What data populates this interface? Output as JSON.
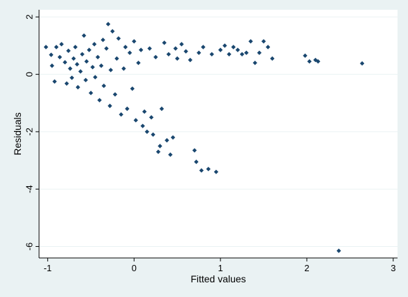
{
  "chart_data": {
    "type": "scatter",
    "title": "",
    "xlabel": "Fitted values",
    "ylabel": "Residuals",
    "xlim": [
      -1.1,
      3.05
    ],
    "ylim": [
      -6.4,
      2.25
    ],
    "x_ticks": [
      -1,
      0,
      1,
      2,
      3
    ],
    "y_ticks": [
      2,
      0,
      -2,
      -4,
      -6
    ],
    "x_tick_labels": [
      "-1",
      "0",
      "1",
      "2",
      "3"
    ],
    "y_tick_labels": [
      "2",
      "0",
      "-2",
      "-4",
      "-6"
    ],
    "grid": true,
    "legend": "none",
    "colors": {
      "outer_background": "#eaf2f3",
      "plot_background": "#ffffff",
      "marker": "#1a476f",
      "gridline": "#eaf2f3",
      "axis": "#000000"
    },
    "marker_shape": "diamond",
    "points": [
      [
        -1.02,
        0.95
      ],
      [
        -0.96,
        0.68
      ],
      [
        -0.95,
        0.3
      ],
      [
        -0.92,
        -0.25
      ],
      [
        -0.9,
        0.95
      ],
      [
        -0.86,
        0.6
      ],
      [
        -0.84,
        1.05
      ],
      [
        -0.8,
        0.42
      ],
      [
        -0.78,
        -0.32
      ],
      [
        -0.76,
        0.82
      ],
      [
        -0.74,
        0.2
      ],
      [
        -0.72,
        -0.12
      ],
      [
        -0.7,
        0.55
      ],
      [
        -0.68,
        0.95
      ],
      [
        -0.66,
        0.35
      ],
      [
        -0.65,
        -0.45
      ],
      [
        -0.62,
        0.1
      ],
      [
        -0.6,
        0.7
      ],
      [
        -0.58,
        1.35
      ],
      [
        -0.56,
        -0.2
      ],
      [
        -0.55,
        0.45
      ],
      [
        -0.52,
        0.85
      ],
      [
        -0.5,
        -0.65
      ],
      [
        -0.48,
        0.25
      ],
      [
        -0.46,
        1.05
      ],
      [
        -0.45,
        -0.1
      ],
      [
        -0.42,
        0.6
      ],
      [
        -0.4,
        -0.9
      ],
      [
        -0.38,
        0.3
      ],
      [
        -0.36,
        1.2
      ],
      [
        -0.35,
        -0.4
      ],
      [
        -0.32,
        0.9
      ],
      [
        -0.3,
        1.75
      ],
      [
        -0.28,
        -1.1
      ],
      [
        -0.27,
        0.15
      ],
      [
        -0.25,
        1.5
      ],
      [
        -0.22,
        -0.7
      ],
      [
        -0.2,
        0.55
      ],
      [
        -0.18,
        1.25
      ],
      [
        -0.15,
        -1.4
      ],
      [
        -0.12,
        0.2
      ],
      [
        -0.1,
        0.95
      ],
      [
        -0.08,
        -1.2
      ],
      [
        -0.05,
        0.75
      ],
      [
        -0.02,
        -0.5
      ],
      [
        0.0,
        1.15
      ],
      [
        0.02,
        -1.6
      ],
      [
        0.05,
        0.4
      ],
      [
        0.08,
        0.85
      ],
      [
        0.1,
        -1.8
      ],
      [
        0.12,
        -1.3
      ],
      [
        0.15,
        -2.0
      ],
      [
        0.18,
        0.9
      ],
      [
        0.2,
        -1.5
      ],
      [
        0.22,
        -2.1
      ],
      [
        0.25,
        0.6
      ],
      [
        0.28,
        -2.7
      ],
      [
        0.3,
        -2.5
      ],
      [
        0.32,
        -1.2
      ],
      [
        0.35,
        1.1
      ],
      [
        0.38,
        -2.3
      ],
      [
        0.4,
        0.7
      ],
      [
        0.42,
        -2.8
      ],
      [
        0.45,
        -2.2
      ],
      [
        0.48,
        0.9
      ],
      [
        0.5,
        0.55
      ],
      [
        0.55,
        1.05
      ],
      [
        0.6,
        0.8
      ],
      [
        0.65,
        0.5
      ],
      [
        0.7,
        -2.65
      ],
      [
        0.72,
        -3.05
      ],
      [
        0.75,
        0.75
      ],
      [
        0.78,
        -3.35
      ],
      [
        0.8,
        0.95
      ],
      [
        0.86,
        -3.3
      ],
      [
        0.9,
        0.7
      ],
      [
        0.95,
        -3.4
      ],
      [
        1.0,
        0.85
      ],
      [
        1.05,
        1.0
      ],
      [
        1.1,
        0.7
      ],
      [
        1.15,
        0.95
      ],
      [
        1.2,
        0.85
      ],
      [
        1.25,
        0.7
      ],
      [
        1.3,
        0.75
      ],
      [
        1.35,
        1.15
      ],
      [
        1.4,
        0.4
      ],
      [
        1.45,
        0.75
      ],
      [
        1.5,
        1.15
      ],
      [
        1.55,
        0.95
      ],
      [
        1.6,
        0.55
      ],
      [
        1.98,
        0.65
      ],
      [
        2.03,
        0.45
      ],
      [
        2.1,
        0.5
      ],
      [
        2.13,
        0.45
      ],
      [
        2.37,
        -6.15
      ],
      [
        2.64,
        0.38
      ]
    ]
  }
}
